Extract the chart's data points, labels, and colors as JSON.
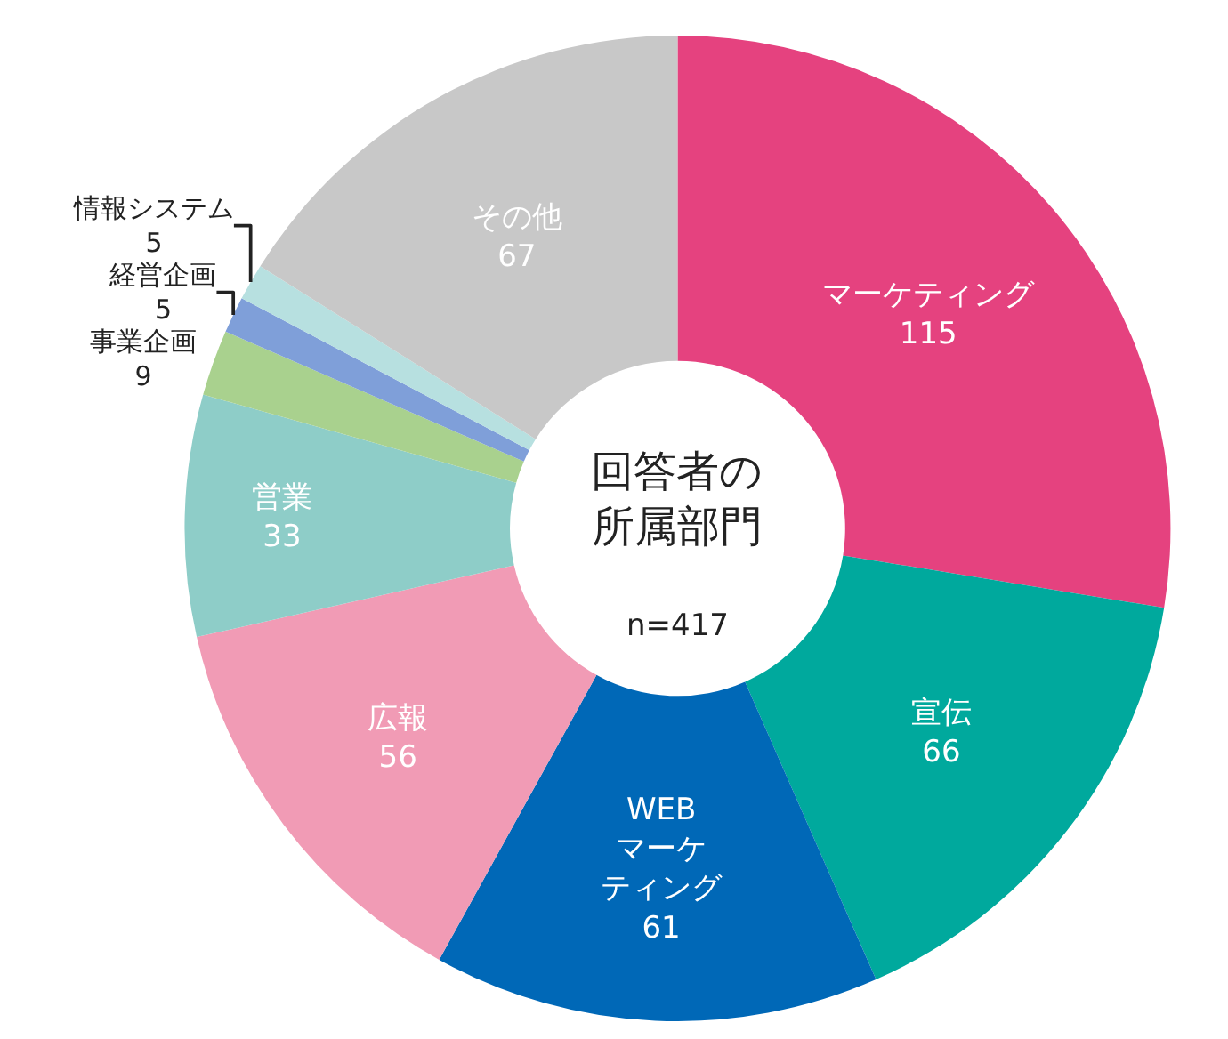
{
  "chart_data": {
    "type": "donut",
    "title": "回答者の所属部門",
    "annotations": [
      "n=417"
    ],
    "categories": [
      "マーケティング",
      "宣伝",
      "WEBマーケティング",
      "広報",
      "営業",
      "事業企画",
      "経営企画",
      "情報システム",
      "その他"
    ],
    "values": [
      115,
      66,
      61,
      56,
      33,
      9,
      5,
      5,
      67
    ],
    "colors": [
      "#e5427f",
      "#00a99d",
      "#0068b7",
      "#f19bb5",
      "#8ecdc8",
      "#a9d18e",
      "#7f9fd9",
      "#b7e0e0",
      "#c8c8c8"
    ],
    "data_labels": true,
    "legend": false
  }
}
